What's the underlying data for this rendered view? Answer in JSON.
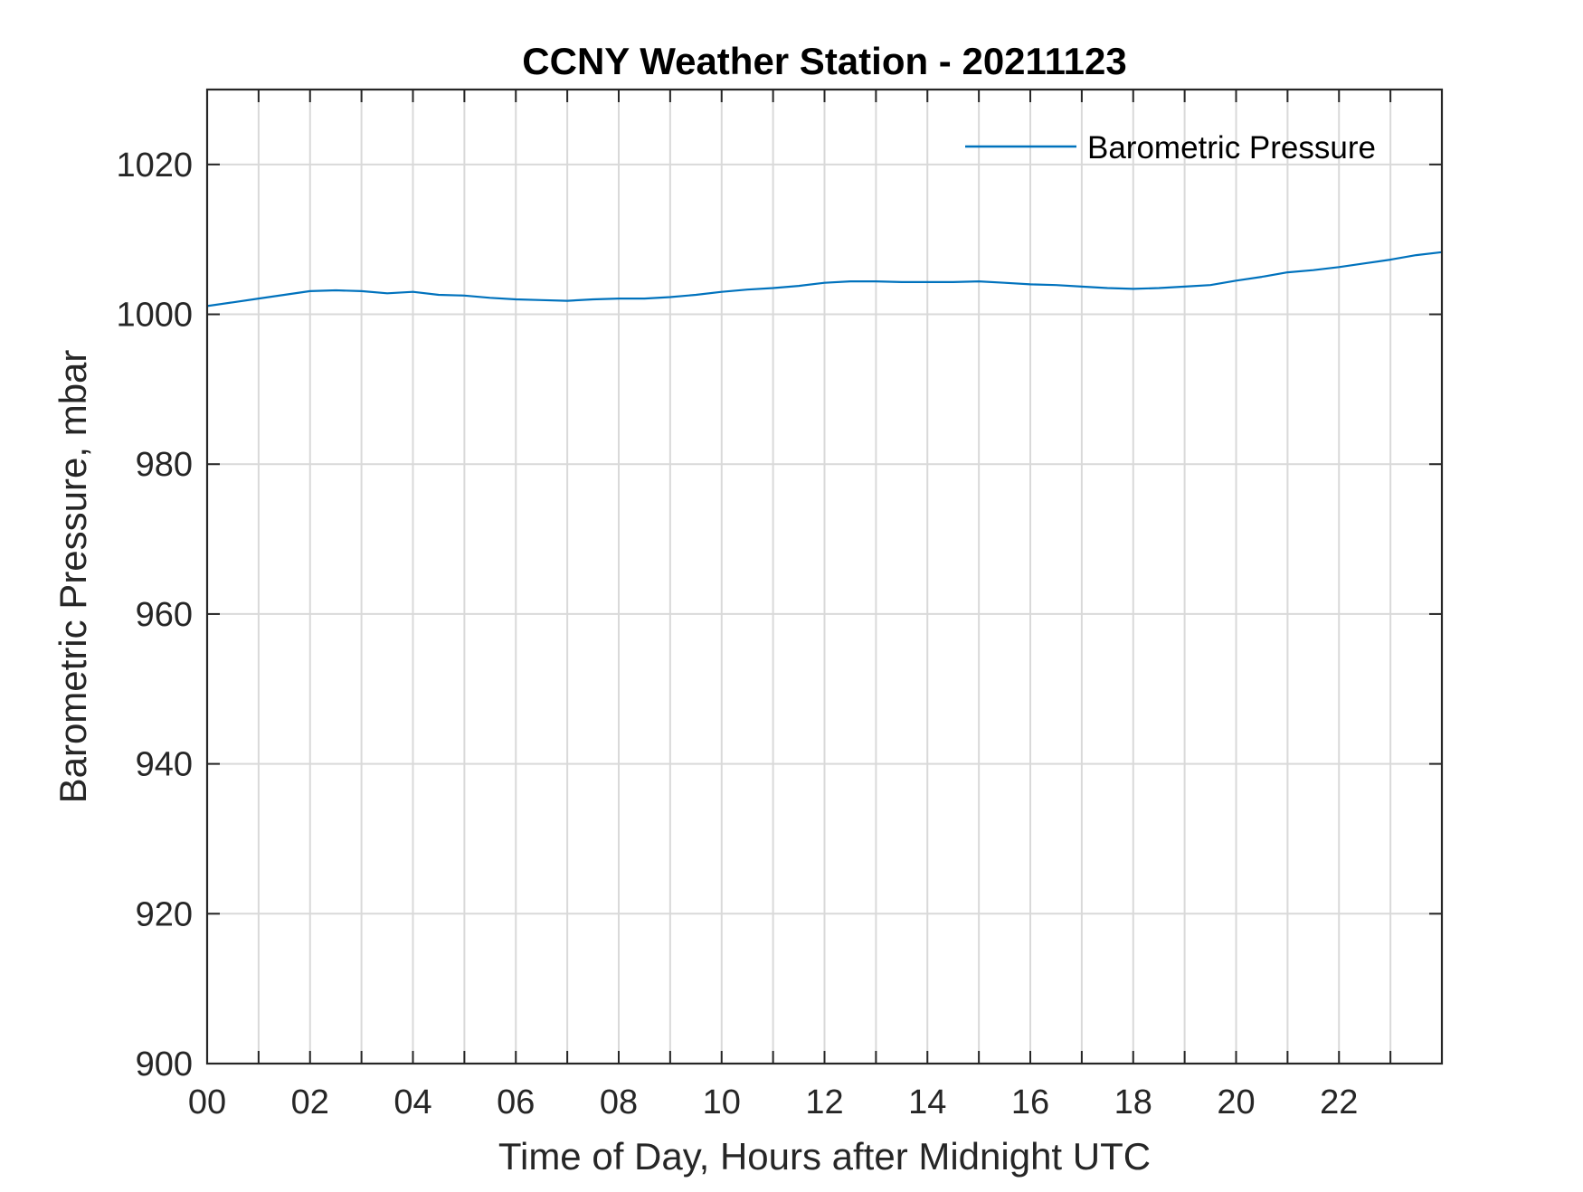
{
  "chart_data": {
    "type": "line",
    "title": "CCNY Weather Station - 20211123",
    "xlabel": "Time of Day, Hours after Midnight UTC",
    "ylabel": "Barometric Pressure, mbar",
    "xlim": [
      0,
      24
    ],
    "ylim": [
      900,
      1030
    ],
    "x_tick_labels": [
      "00",
      "02",
      "04",
      "06",
      "08",
      "10",
      "12",
      "14",
      "16",
      "18",
      "20",
      "22"
    ],
    "x_ticks": [
      0,
      2,
      4,
      6,
      8,
      10,
      12,
      14,
      16,
      18,
      20,
      22
    ],
    "x_grid": [
      0,
      1,
      2,
      3,
      4,
      5,
      6,
      7,
      8,
      9,
      10,
      11,
      12,
      13,
      14,
      15,
      16,
      17,
      18,
      19,
      20,
      21,
      22,
      23,
      24
    ],
    "y_ticks": [
      900,
      920,
      940,
      960,
      980,
      1000,
      1020
    ],
    "y_tick_labels": [
      "900",
      "920",
      "940",
      "960",
      "980",
      "1000",
      "1020"
    ],
    "grid": true,
    "legend_position": "top-right",
    "series": [
      {
        "name": "Barometric Pressure",
        "color": "#0072BD",
        "x": [
          0,
          0.5,
          1,
          1.5,
          2,
          2.5,
          3,
          3.5,
          4,
          4.5,
          5,
          5.5,
          6,
          6.5,
          7,
          7.5,
          8,
          8.5,
          9,
          9.5,
          10,
          10.5,
          11,
          11.5,
          12,
          12.5,
          13,
          13.5,
          14,
          14.5,
          15,
          15.5,
          16,
          16.5,
          17,
          17.5,
          18,
          18.5,
          19,
          19.5,
          20,
          20.5,
          21,
          21.5,
          22,
          22.5,
          23,
          23.5,
          24
        ],
        "values": [
          1001.1,
          1001.6,
          1002.1,
          1002.6,
          1003.1,
          1003.2,
          1003.1,
          1002.8,
          1003.0,
          1002.6,
          1002.5,
          1002.2,
          1002.0,
          1001.9,
          1001.8,
          1002.0,
          1002.1,
          1002.1,
          1002.3,
          1002.6,
          1003.0,
          1003.3,
          1003.5,
          1003.8,
          1004.2,
          1004.4,
          1004.4,
          1004.3,
          1004.3,
          1004.3,
          1004.4,
          1004.2,
          1004.0,
          1003.9,
          1003.7,
          1003.5,
          1003.4,
          1003.5,
          1003.7,
          1003.9,
          1004.5,
          1005.0,
          1005.6,
          1005.9,
          1006.3,
          1006.8,
          1007.3,
          1007.9,
          1008.3
        ]
      }
    ]
  }
}
